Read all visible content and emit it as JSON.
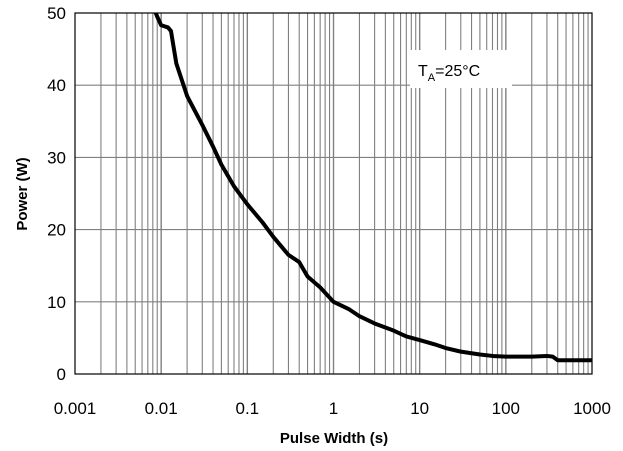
{
  "chart_data": {
    "type": "line",
    "xlabel": "Pulse Width (s)",
    "ylabel": "Power (W)",
    "x_scale": "log",
    "xlim": [
      0.001,
      1000
    ],
    "ylim": [
      0,
      50
    ],
    "x_ticks": [
      "0.001",
      "0.01",
      "0.1",
      "1",
      "10",
      "100",
      "1000"
    ],
    "y_ticks": [
      "0",
      "10",
      "20",
      "30",
      "40",
      "50"
    ],
    "grid": true,
    "annotation": {
      "main": "T",
      "sub": "A",
      "rest": "=25°C"
    },
    "series": [
      {
        "color": "#000000",
        "x": [
          0.008,
          0.009,
          0.01,
          0.012,
          0.013,
          0.015,
          0.02,
          0.03,
          0.04,
          0.05,
          0.07,
          0.1,
          0.15,
          0.2,
          0.3,
          0.4,
          0.5,
          0.7,
          1,
          1.5,
          2,
          3,
          5,
          7,
          10,
          15,
          20,
          30,
          50,
          70,
          100,
          150,
          200,
          300,
          350,
          400,
          500,
          700,
          1000
        ],
        "y": [
          51,
          49.5,
          48.3,
          48,
          47.5,
          43,
          38.5,
          34.5,
          31.5,
          29,
          26,
          23.5,
          21,
          19,
          16.5,
          15.5,
          13.5,
          12,
          10,
          9,
          8,
          7,
          6,
          5.2,
          4.7,
          4.1,
          3.6,
          3.1,
          2.7,
          2.5,
          2.4,
          2.4,
          2.4,
          2.5,
          2.4,
          1.9,
          1.9,
          1.9,
          1.9
        ]
      }
    ]
  }
}
